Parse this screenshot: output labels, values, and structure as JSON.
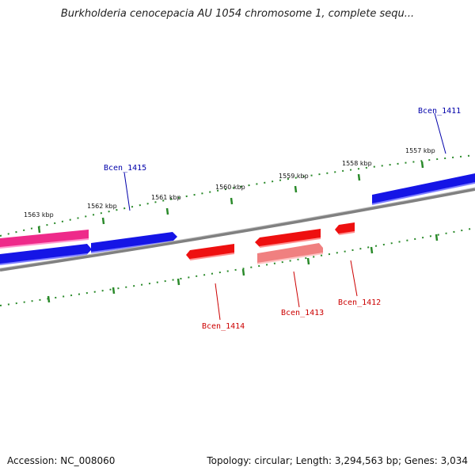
{
  "title": "Burkholderia cenocepacia AU 1054 chromosome 1, complete sequ...",
  "footer": {
    "accession": "Accession: NC_008060",
    "summary": "Topology: circular; Length: 3,294,563 bp; Genes: 3,034"
  },
  "colors": {
    "forward_gene": "#1515e6",
    "reverse_gene": "#ee1010",
    "reverse_gene_light": "#f08080",
    "feature_pink": "#ee2a8a",
    "backbone": "#808080",
    "ticks": "#2a8a2a",
    "label_forward": "#0000aa",
    "label_reverse": "#cc0000"
  },
  "kbp_labels": [
    "1557 kbp",
    "1558 kbp",
    "1559 kbp",
    "1560 kbp",
    "1561 kbp",
    "1562 kbp",
    "1563 kbp"
  ],
  "gene_labels": {
    "forward": [
      "Bcen_1411",
      "Bcen_1415"
    ],
    "reverse": [
      "Bcen_1412",
      "Bcen_1413",
      "Bcen_1414"
    ]
  }
}
